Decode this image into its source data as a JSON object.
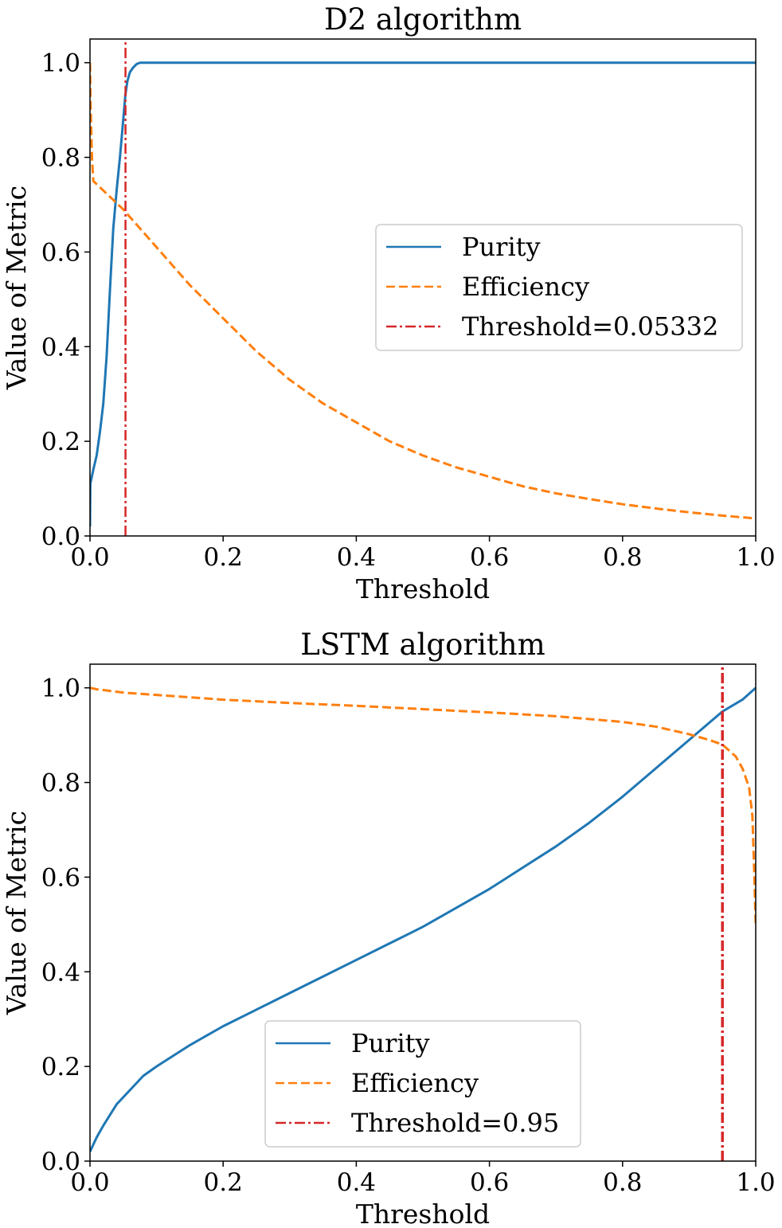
{
  "chart_data": [
    {
      "type": "line",
      "title": "D2 algorithm",
      "xlabel": "Threshold",
      "ylabel": "Value of Metric",
      "xlim": [
        0.0,
        1.0
      ],
      "ylim": [
        0.0,
        1.05
      ],
      "xticks": [
        "0.0",
        "0.2",
        "0.4",
        "0.6",
        "0.8",
        "1.0"
      ],
      "yticks": [
        "0.0",
        "0.2",
        "0.4",
        "0.6",
        "0.8",
        "1.0"
      ],
      "grid": false,
      "legend_position": "center-right",
      "series": [
        {
          "name": "Purity",
          "style": "solid",
          "color": "#1f77b4",
          "x": [
            0.0,
            0.0005,
            0.002,
            0.005,
            0.01,
            0.015,
            0.02,
            0.025,
            0.03,
            0.035,
            0.04,
            0.045,
            0.05,
            0.053,
            0.056,
            0.06,
            0.065,
            0.07,
            0.075,
            0.08,
            0.09,
            0.1,
            0.2,
            0.4,
            0.6,
            0.8,
            1.0
          ],
          "y": [
            0.02,
            0.11,
            0.12,
            0.14,
            0.17,
            0.22,
            0.28,
            0.38,
            0.52,
            0.65,
            0.73,
            0.8,
            0.88,
            0.93,
            0.96,
            0.98,
            0.99,
            0.997,
            1.0,
            1.0,
            1.0,
            1.0,
            1.0,
            1.0,
            1.0,
            1.0,
            1.0
          ]
        },
        {
          "name": "Efficiency",
          "style": "dashed",
          "color": "#ff7f0e",
          "x": [
            0.0,
            0.001,
            0.003,
            0.005,
            0.02,
            0.05,
            0.1,
            0.15,
            0.2,
            0.25,
            0.3,
            0.35,
            0.4,
            0.45,
            0.5,
            0.55,
            0.6,
            0.65,
            0.7,
            0.75,
            0.8,
            0.85,
            0.9,
            0.95,
            1.0
          ],
          "y": [
            1.0,
            0.9,
            0.8,
            0.75,
            0.73,
            0.69,
            0.61,
            0.53,
            0.46,
            0.39,
            0.33,
            0.28,
            0.24,
            0.2,
            0.17,
            0.145,
            0.125,
            0.105,
            0.09,
            0.078,
            0.067,
            0.058,
            0.05,
            0.043,
            0.037
          ]
        },
        {
          "name": "Threshold=0.05332",
          "style": "dashdot",
          "color": "#d62728",
          "x": [
            0.05332,
            0.05332
          ],
          "y": [
            0.0,
            1.05
          ]
        }
      ]
    },
    {
      "type": "line",
      "title": "LSTM algorithm",
      "xlabel": "Threshold",
      "ylabel": "Value of Metric",
      "xlim": [
        0.0,
        1.0
      ],
      "ylim": [
        0.0,
        1.05
      ],
      "xticks": [
        "0.0",
        "0.2",
        "0.4",
        "0.6",
        "0.8",
        "1.0"
      ],
      "yticks": [
        "0.0",
        "0.2",
        "0.4",
        "0.6",
        "0.8",
        "1.0"
      ],
      "grid": false,
      "legend_position": "lower-center",
      "series": [
        {
          "name": "Purity",
          "style": "solid",
          "color": "#1f77b4",
          "x": [
            0.0,
            0.01,
            0.02,
            0.04,
            0.06,
            0.08,
            0.1,
            0.15,
            0.2,
            0.25,
            0.3,
            0.35,
            0.4,
            0.45,
            0.5,
            0.55,
            0.6,
            0.65,
            0.7,
            0.75,
            0.8,
            0.85,
            0.9,
            0.95,
            0.98,
            1.0
          ],
          "y": [
            0.02,
            0.05,
            0.075,
            0.12,
            0.15,
            0.18,
            0.2,
            0.245,
            0.285,
            0.32,
            0.355,
            0.39,
            0.425,
            0.46,
            0.495,
            0.535,
            0.575,
            0.62,
            0.665,
            0.715,
            0.77,
            0.83,
            0.89,
            0.95,
            0.975,
            1.0
          ]
        },
        {
          "name": "Efficiency",
          "style": "dashed",
          "color": "#ff7f0e",
          "x": [
            0.0,
            0.01,
            0.05,
            0.1,
            0.2,
            0.3,
            0.4,
            0.5,
            0.6,
            0.7,
            0.8,
            0.85,
            0.9,
            0.93,
            0.95,
            0.97,
            0.98,
            0.99,
            0.995,
            0.998,
            1.0
          ],
          "y": [
            1.0,
            0.997,
            0.99,
            0.985,
            0.975,
            0.968,
            0.962,
            0.955,
            0.948,
            0.94,
            0.928,
            0.918,
            0.902,
            0.89,
            0.88,
            0.855,
            0.83,
            0.79,
            0.73,
            0.6,
            0.5
          ]
        },
        {
          "name": "Threshold=0.95",
          "style": "dashdot",
          "color": "#d62728",
          "x": [
            0.95,
            0.95
          ],
          "y": [
            0.0,
            1.05
          ]
        }
      ]
    }
  ]
}
